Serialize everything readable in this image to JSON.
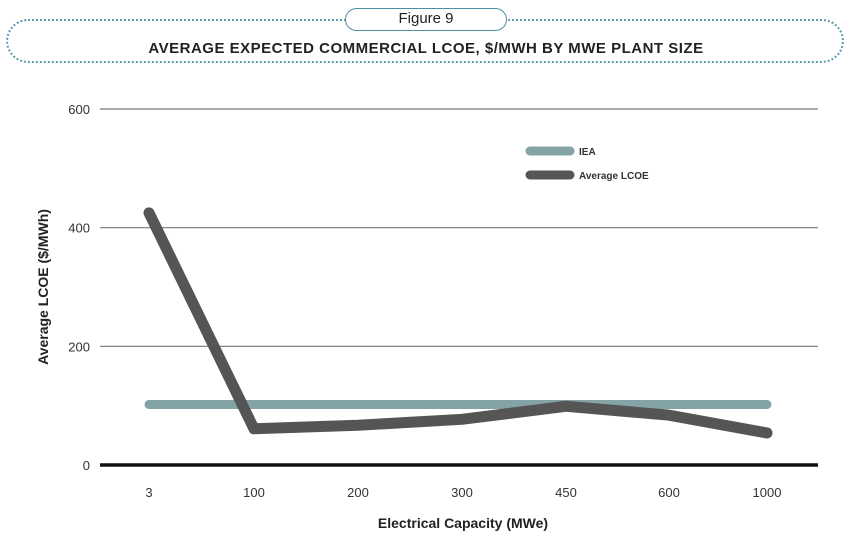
{
  "figure_label": "Figure 9",
  "chart_data": {
    "type": "line",
    "title": "AVERAGE EXPECTED COMMERCIAL LCOE, $/MWH BY MWE PLANT SIZE",
    "xlabel": "Electrical Capacity (MWe)",
    "ylabel": "Average LCOE ($/MWh)",
    "categories": [
      "3",
      "100",
      "200",
      "300",
      "450",
      "600",
      "1000"
    ],
    "ylim": [
      0,
      600
    ],
    "yticks": [
      0,
      200,
      400,
      600
    ],
    "grid": true,
    "legend_position": "top-right",
    "series": [
      {
        "name": "IEA",
        "color": "#84a3a6",
        "values": [
          102,
          102,
          102,
          102,
          102,
          102,
          102
        ]
      },
      {
        "name": "Average LCOE",
        "color": "#555555",
        "values": [
          425,
          61,
          67,
          77,
          99,
          84,
          54
        ]
      }
    ]
  }
}
